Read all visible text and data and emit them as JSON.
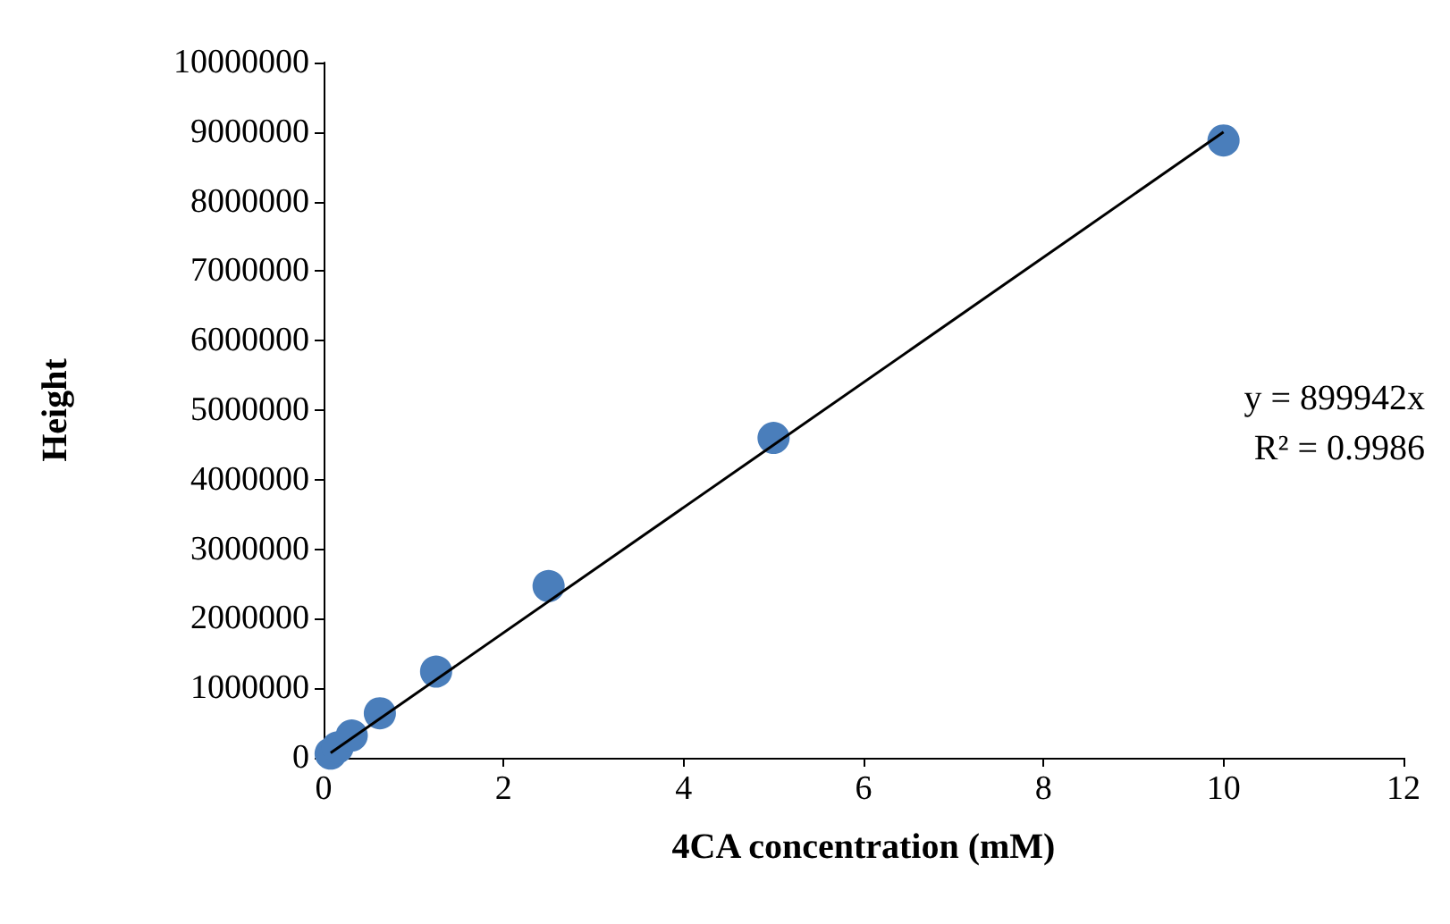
{
  "chart_data": {
    "type": "scatter",
    "xlabel": "4CA concentration (mM)",
    "ylabel": "Height",
    "xlim": [
      0,
      12
    ],
    "xticks": [
      0,
      2,
      4,
      6,
      8,
      10,
      12
    ],
    "ylim": [
      0,
      10000000
    ],
    "yticks": [
      0,
      1000000,
      2000000,
      3000000,
      4000000,
      5000000,
      6000000,
      7000000,
      8000000,
      9000000,
      10000000
    ],
    "grid": false,
    "marker": "circle",
    "series": [
      {
        "color": "#4a7ebb",
        "x": [
          0.078,
          0.156,
          0.3125,
          0.625,
          1.25,
          2.5,
          5,
          10
        ],
        "values": [
          60000,
          150000,
          320000,
          640000,
          1240000,
          2470000,
          4600000,
          8880000
        ]
      },
      {
        "type": "line",
        "color": "#000000",
        "x": [
          0.078,
          10
        ],
        "values": [
          70000,
          9000000
        ],
        "marker": "none",
        "line_style": "solid"
      }
    ],
    "annotations": [
      "y = 899942x",
      "R² = 0.9986"
    ]
  }
}
